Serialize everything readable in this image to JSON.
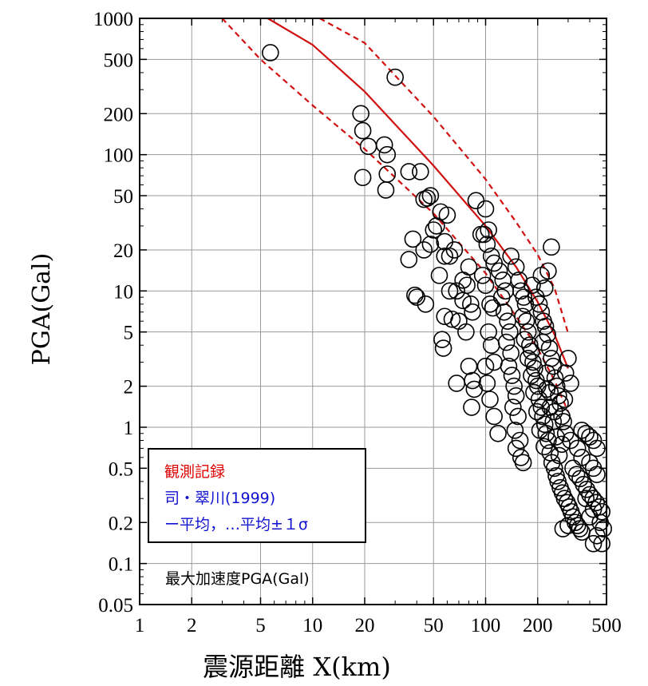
{
  "chart_data": {
    "type": "scatter",
    "xlabel": "震源距離 X(km)",
    "ylabel": "PGA(Gal)",
    "x_scale": "log",
    "y_scale": "log",
    "xlim": [
      1,
      500
    ],
    "ylim": [
      0.05,
      1000
    ],
    "grid": true,
    "x_ticks": [
      {
        "v": 1,
        "label": "1"
      },
      {
        "v": 2,
        "label": "2"
      },
      {
        "v": 5,
        "label": "5"
      },
      {
        "v": 10,
        "label": "10"
      },
      {
        "v": 20,
        "label": "20"
      },
      {
        "v": 50,
        "label": "50"
      },
      {
        "v": 100,
        "label": "100"
      },
      {
        "v": 200,
        "label": "200"
      },
      {
        "v": 500,
        "label": "500"
      }
    ],
    "y_ticks": [
      {
        "v": 0.05,
        "label": "0.05"
      },
      {
        "v": 0.1,
        "label": "0.1"
      },
      {
        "v": 0.2,
        "label": "0.2"
      },
      {
        "v": 0.5,
        "label": "0.5"
      },
      {
        "v": 1,
        "label": "1"
      },
      {
        "v": 2,
        "label": "2"
      },
      {
        "v": 5,
        "label": "5"
      },
      {
        "v": 10,
        "label": "10"
      },
      {
        "v": 20,
        "label": "20"
      },
      {
        "v": 50,
        "label": "50"
      },
      {
        "v": 100,
        "label": "100"
      },
      {
        "v": 200,
        "label": "200"
      },
      {
        "v": 500,
        "label": "500"
      },
      {
        "v": 1000,
        "label": "1000"
      }
    ],
    "legend": {
      "placement": "bottom-left",
      "items": [
        {
          "text": "観測記録",
          "color": "#e00000"
        },
        {
          "text": "司・翠川(1999)",
          "color": "#1010d0"
        },
        {
          "text": "ー平均，…平均±１σ",
          "color": "#1010d0"
        }
      ]
    },
    "annotation": "最大加速度PGA(Gal)",
    "series": [
      {
        "kind": "points",
        "marker": "open-circle",
        "color": "#000000",
        "points": [
          [
            5.7,
            560
          ],
          [
            30,
            370
          ],
          [
            19,
            200
          ],
          [
            19.5,
            150
          ],
          [
            21,
            115
          ],
          [
            26,
            118
          ],
          [
            27,
            100
          ],
          [
            19.5,
            68
          ],
          [
            27,
            72
          ],
          [
            26.5,
            55
          ],
          [
            36,
            75
          ],
          [
            42,
            75
          ],
          [
            46,
            48
          ],
          [
            48,
            50
          ],
          [
            44,
            47
          ],
          [
            38,
            24
          ],
          [
            36,
            17
          ],
          [
            40,
            9
          ],
          [
            39,
            9.3
          ],
          [
            45,
            8
          ],
          [
            44,
            20
          ],
          [
            50,
            28
          ],
          [
            52,
            30
          ],
          [
            48,
            22
          ],
          [
            55,
            38
          ],
          [
            60,
            36
          ],
          [
            58,
            23
          ],
          [
            62,
            18
          ],
          [
            58,
            18
          ],
          [
            66,
            20
          ],
          [
            54,
            13
          ],
          [
            62,
            10
          ],
          [
            68,
            10
          ],
          [
            58,
            6.5
          ],
          [
            56,
            4.4
          ],
          [
            57,
            3.8
          ],
          [
            64,
            6.2
          ],
          [
            70,
            6
          ],
          [
            74,
            8.5
          ],
          [
            68,
            2.1
          ],
          [
            74,
            12
          ],
          [
            80,
            15
          ],
          [
            78,
            11
          ],
          [
            82,
            8
          ],
          [
            84,
            7
          ],
          [
            77,
            5
          ],
          [
            80,
            2.8
          ],
          [
            84,
            2.2
          ],
          [
            86,
            1.9
          ],
          [
            83,
            1.4
          ],
          [
            88,
            46
          ],
          [
            100,
            40
          ],
          [
            94,
            26
          ],
          [
            98,
            26
          ],
          [
            104,
            28
          ],
          [
            102,
            22
          ],
          [
            108,
            18
          ],
          [
            112,
            16
          ],
          [
            96,
            13
          ],
          [
            100,
            11
          ],
          [
            106,
            8
          ],
          [
            110,
            7.5
          ],
          [
            104,
            5
          ],
          [
            108,
            4
          ],
          [
            112,
            3
          ],
          [
            100,
            2.8
          ],
          [
            102,
            2.1
          ],
          [
            106,
            1.6
          ],
          [
            112,
            1.2
          ],
          [
            118,
            0.9
          ],
          [
            120,
            14
          ],
          [
            126,
            12
          ],
          [
            130,
            10
          ],
          [
            124,
            9
          ],
          [
            128,
            7
          ],
          [
            134,
            6
          ],
          [
            138,
            5
          ],
          [
            132,
            4.2
          ],
          [
            140,
            3.5
          ],
          [
            136,
            2.8
          ],
          [
            142,
            2.4
          ],
          [
            146,
            2
          ],
          [
            150,
            1.7
          ],
          [
            144,
            1.4
          ],
          [
            154,
            1.2
          ],
          [
            148,
            0.95
          ],
          [
            158,
            0.8
          ],
          [
            150,
            0.7
          ],
          [
            160,
            0.6
          ],
          [
            165,
            0.55
          ],
          [
            140,
            18
          ],
          [
            150,
            15
          ],
          [
            156,
            12
          ],
          [
            160,
            10
          ],
          [
            166,
            9
          ],
          [
            170,
            8
          ],
          [
            164,
            6.5
          ],
          [
            172,
            6
          ],
          [
            176,
            5
          ],
          [
            168,
            4.4
          ],
          [
            180,
            4
          ],
          [
            184,
            3.6
          ],
          [
            176,
            3.2
          ],
          [
            188,
            3
          ],
          [
            192,
            2.7
          ],
          [
            184,
            2.4
          ],
          [
            196,
            2.2
          ],
          [
            200,
            2
          ],
          [
            190,
            1.8
          ],
          [
            204,
            1.6
          ],
          [
            210,
            1.4
          ],
          [
            198,
            1.3
          ],
          [
            214,
            1.2
          ],
          [
            220,
            1.05
          ],
          [
            206,
            0.95
          ],
          [
            224,
            0.9
          ],
          [
            230,
            0.8
          ],
          [
            218,
            0.72
          ],
          [
            236,
            0.65
          ],
          [
            242,
            0.55
          ],
          [
            186,
            11
          ],
          [
            196,
            9
          ],
          [
            204,
            8
          ],
          [
            210,
            7
          ],
          [
            216,
            6
          ],
          [
            222,
            5.5
          ],
          [
            228,
            4.8
          ],
          [
            214,
            4.2
          ],
          [
            234,
            3.8
          ],
          [
            240,
            3.2
          ],
          [
            246,
            2.8
          ],
          [
            226,
            2.5
          ],
          [
            252,
            2.3
          ],
          [
            258,
            2
          ],
          [
            236,
            1.8
          ],
          [
            264,
            1.7
          ],
          [
            270,
            1.5
          ],
          [
            250,
            1.3
          ],
          [
            276,
            1.2
          ],
          [
            282,
            1.1
          ],
          [
            240,
            21
          ],
          [
            230,
            14
          ],
          [
            220,
            10.5
          ],
          [
            210,
            13
          ],
          [
            250,
            0.5
          ],
          [
            256,
            0.44
          ],
          [
            262,
            0.4
          ],
          [
            270,
            0.36
          ],
          [
            278,
            0.33
          ],
          [
            286,
            0.3
          ],
          [
            296,
            0.28
          ],
          [
            304,
            0.26
          ],
          [
            312,
            0.24
          ],
          [
            320,
            0.22
          ],
          [
            330,
            0.2
          ],
          [
            340,
            0.19
          ],
          [
            350,
            0.18
          ],
          [
            360,
            0.17
          ],
          [
            280,
            0.18
          ],
          [
            300,
            0.19
          ],
          [
            320,
            0.5
          ],
          [
            336,
            0.45
          ],
          [
            352,
            0.42
          ],
          [
            368,
            0.38
          ],
          [
            384,
            0.35
          ],
          [
            400,
            0.32
          ],
          [
            418,
            0.3
          ],
          [
            436,
            0.28
          ],
          [
            454,
            0.26
          ],
          [
            470,
            0.24
          ],
          [
            360,
            0.95
          ],
          [
            380,
            0.9
          ],
          [
            400,
            0.85
          ],
          [
            420,
            0.8
          ],
          [
            440,
            0.7
          ],
          [
            400,
            0.55
          ],
          [
            420,
            0.5
          ],
          [
            440,
            0.45
          ],
          [
            420,
            0.25
          ],
          [
            460,
            0.2
          ],
          [
            420,
            0.14
          ],
          [
            440,
            0.16
          ],
          [
            470,
            0.14
          ],
          [
            480,
            0.18
          ],
          [
            400,
            0.22
          ],
          [
            380,
            0.3
          ],
          [
            360,
            0.6
          ],
          [
            340,
            0.7
          ],
          [
            310,
            0.8
          ],
          [
            290,
            0.9
          ],
          [
            300,
            3.2
          ],
          [
            310,
            2.1
          ],
          [
            290,
            2.5
          ],
          [
            286,
            1.6
          ],
          [
            276,
            0.75
          ],
          [
            266,
            0.62
          ],
          [
            256,
            0.85
          ],
          [
            246,
            1.1
          ],
          [
            236,
            1.4
          ],
          [
            226,
            1.9
          ]
        ]
      },
      {
        "kind": "line",
        "style": "solid",
        "color": "#d01010",
        "points": [
          [
            5.5,
            1000
          ],
          [
            10,
            640
          ],
          [
            20,
            290
          ],
          [
            50,
            83
          ],
          [
            100,
            30
          ],
          [
            150,
            15
          ],
          [
            200,
            8.3
          ],
          [
            250,
            4.8
          ],
          [
            300,
            2.7
          ]
        ]
      },
      {
        "kind": "line",
        "style": "dashed",
        "color": "#d01010",
        "points": [
          [
            11,
            1000
          ],
          [
            20,
            660
          ],
          [
            50,
            190
          ],
          [
            100,
            66
          ],
          [
            150,
            32
          ],
          [
            200,
            18.5
          ],
          [
            250,
            10.5
          ],
          [
            300,
            4.9
          ]
        ]
      },
      {
        "kind": "line",
        "style": "dashed",
        "color": "#d01010",
        "points": [
          [
            3,
            1000
          ],
          [
            5,
            500
          ],
          [
            10,
            230
          ],
          [
            20,
            110
          ],
          [
            50,
            37
          ],
          [
            100,
            13.5
          ],
          [
            150,
            6.5
          ],
          [
            200,
            3.8
          ],
          [
            250,
            2.2
          ],
          [
            300,
            1.3
          ]
        ]
      }
    ]
  }
}
